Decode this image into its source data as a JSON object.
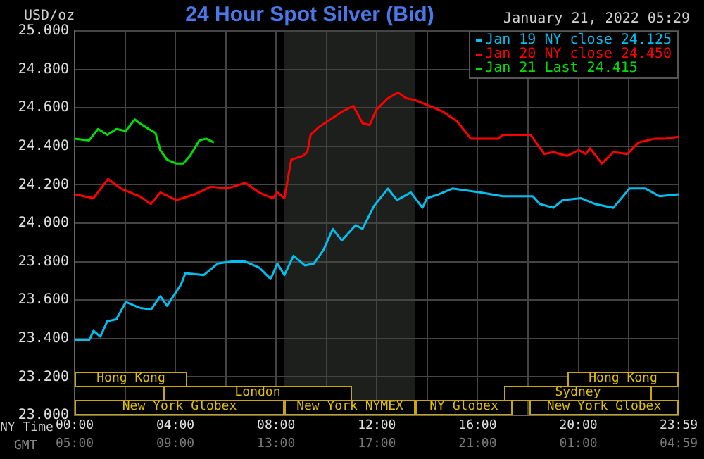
{
  "chart_data": {
    "type": "line",
    "title": "24 Hour Spot Silver (Bid)",
    "subtitle": "January 21, 2022 05:29",
    "ylabel": "USD/oz",
    "xlabel": "NY Time",
    "x2label": "GMT",
    "xlim": [
      0,
      23.983
    ],
    "xticks": [
      {
        "value": 0,
        "label": "00:00"
      },
      {
        "value": 2,
        "label": null
      },
      {
        "value": 4,
        "label": "04:00"
      },
      {
        "value": 6,
        "label": null
      },
      {
        "value": 8,
        "label": "08:00"
      },
      {
        "value": 10,
        "label": null
      },
      {
        "value": 12,
        "label": "12:00"
      },
      {
        "value": 14,
        "label": null
      },
      {
        "value": 16,
        "label": "16:00"
      },
      {
        "value": 18,
        "label": null
      },
      {
        "value": 20,
        "label": "20:00"
      },
      {
        "value": 22,
        "label": null
      },
      {
        "value": 23.983,
        "label": "23:59"
      }
    ],
    "x2lim": [
      "2022-01-21T05:00",
      "2022-01-22T04:59"
    ],
    "x2ticks": [
      {
        "value": "2022-01-21T05:00",
        "label": "05:00"
      },
      {
        "value": "2022-01-21T09:00",
        "label": "09:00"
      },
      {
        "value": "2022-01-21T13:00",
        "label": "13:00"
      },
      {
        "value": "2022-01-21T17:00",
        "label": "17:00"
      },
      {
        "value": "2022-01-21T21:00",
        "label": "21:00"
      },
      {
        "value": "2022-01-22T01:00",
        "label": "01:00"
      },
      {
        "value": "2022-01-22T04:59",
        "label": "04:59"
      }
    ],
    "ylim": [
      23,
      25
    ],
    "yticks": [
      {
        "value": 23,
        "label": "23.000"
      },
      {
        "value": 23.2,
        "label": "23.200"
      },
      {
        "value": 23.4,
        "label": "23.400"
      },
      {
        "value": 23.6,
        "label": "23.600"
      },
      {
        "value": 23.8,
        "label": "23.800"
      },
      {
        "value": 24,
        "label": "24.000"
      },
      {
        "value": 24.2,
        "label": "24.200"
      },
      {
        "value": 24.4,
        "label": "24.400"
      },
      {
        "value": 24.6,
        "label": "24.600"
      },
      {
        "value": 24.8,
        "label": "24.800"
      },
      {
        "value": 25,
        "label": "25.000"
      }
    ],
    "grid": true,
    "legend": "top right",
    "marker": "none",
    "line_style": "solid",
    "bands": [
      {
        "axis": "x",
        "from": 8.33,
        "to": 13.5,
        "color": "#1c1f1c"
      }
    ],
    "annotations": [
      "New York Globex",
      "New York NYMEX",
      "NY Globex",
      "New York Globex",
      "London",
      "Sydney",
      "Hong Kong",
      "Hong Kong"
    ],
    "series": [
      {
        "name": "Jan 19 NY close 24.125",
        "color": "#00c0f0",
        "x": [
          0,
          0.57,
          0.75,
          1.02,
          1.3,
          1.66,
          2.03,
          2.58,
          3.03,
          3.4,
          3.67,
          4.22,
          4.4,
          5.13,
          5.68,
          6.23,
          6.78,
          7.32,
          7.78,
          8.05,
          8.33,
          8.69,
          9.15,
          9.5,
          9.88,
          10.25,
          10.61,
          11.16,
          11.43,
          11.89,
          12.44,
          12.8,
          13.35,
          13.81,
          13.99,
          14.45,
          15,
          16.09,
          17,
          18.19,
          18.47,
          19.01,
          19.38,
          20.11,
          20.66,
          21.39,
          22.03,
          22.67,
          23.22,
          23.983
        ],
        "values": [
          23.39,
          23.39,
          23.44,
          23.41,
          23.49,
          23.5,
          23.59,
          23.56,
          23.55,
          23.62,
          23.57,
          23.68,
          23.74,
          23.73,
          23.79,
          23.8,
          23.8,
          23.77,
          23.71,
          23.79,
          23.73,
          23.83,
          23.78,
          23.79,
          23.86,
          23.97,
          23.91,
          23.99,
          23.97,
          24.09,
          24.18,
          24.12,
          24.16,
          24.08,
          24.13,
          24.15,
          24.18,
          24.16,
          24.14,
          24.14,
          24.1,
          24.08,
          24.12,
          24.13,
          24.1,
          24.08,
          24.18,
          24.18,
          24.14,
          24.15
        ]
      },
      {
        "name": "Jan 20 NY close 24.450",
        "color": "#ff0000",
        "x": [
          0,
          0.38,
          0.75,
          1.33,
          1.84,
          2.58,
          3.03,
          3.4,
          4.04,
          4.77,
          5.41,
          6.05,
          6.78,
          7.32,
          7.87,
          8.05,
          8.33,
          8.6,
          9.06,
          9.24,
          9.37,
          9.7,
          10.05,
          10.61,
          11.07,
          11.43,
          11.71,
          11.98,
          12.44,
          12.84,
          13.17,
          13.53,
          14.08,
          14.63,
          15.18,
          15.73,
          16.09,
          16.82,
          17,
          18.1,
          18.65,
          19.01,
          19.56,
          20.02,
          20.29,
          20.47,
          20.93,
          21.39,
          21.94,
          22.39,
          23.04,
          23.49,
          23.983
        ],
        "values": [
          24.15,
          24.14,
          24.13,
          24.23,
          24.18,
          24.14,
          24.1,
          24.16,
          24.12,
          24.15,
          24.19,
          24.18,
          24.21,
          24.16,
          24.13,
          24.16,
          24.13,
          24.33,
          24.35,
          24.37,
          24.46,
          24.5,
          24.53,
          24.58,
          24.61,
          24.52,
          24.51,
          24.59,
          24.65,
          24.68,
          24.65,
          24.64,
          24.61,
          24.58,
          24.53,
          24.44,
          24.44,
          24.44,
          24.46,
          24.46,
          24.36,
          24.37,
          24.35,
          24.38,
          24.36,
          24.39,
          24.31,
          24.37,
          24.36,
          24.42,
          24.44,
          24.44,
          24.45
        ]
      },
      {
        "name": "Jan 21 Last 24.415",
        "color": "#00e000",
        "x": [
          0,
          0.57,
          0.93,
          1.3,
          1.66,
          2.03,
          2.39,
          2.58,
          2.94,
          3.21,
          3.4,
          3.67,
          4.04,
          4.31,
          4.58,
          4.95,
          5.22,
          5.53
        ],
        "values": [
          24.44,
          24.43,
          24.49,
          24.46,
          24.49,
          24.48,
          24.54,
          24.52,
          24.49,
          24.47,
          24.38,
          24.33,
          24.31,
          24.31,
          24.35,
          24.43,
          24.44,
          24.42
        ]
      }
    ]
  }
}
